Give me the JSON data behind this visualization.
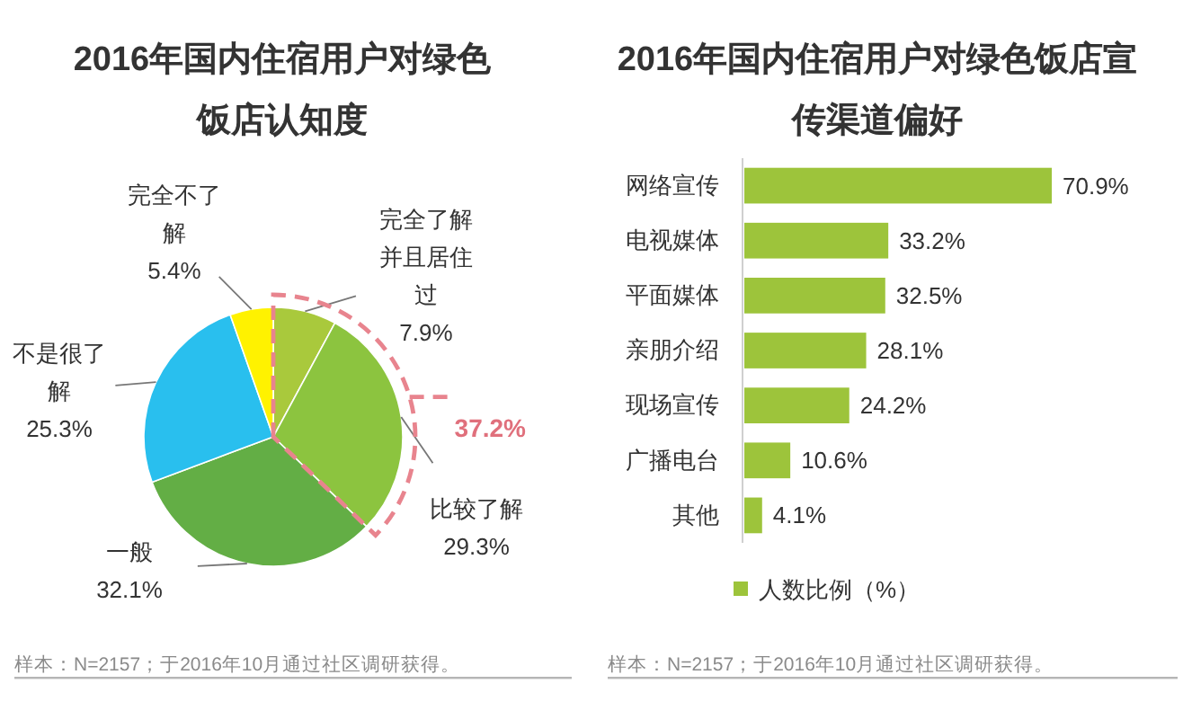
{
  "chart_data": [
    {
      "type": "pie",
      "title": "2016年国内住宿用户对绿色饭店认知度",
      "categories": [
        "完全了解并且居住过",
        "比较了解",
        "一般",
        "不是很了解",
        "完全不了解"
      ],
      "values": [
        7.9,
        29.3,
        32.1,
        25.3,
        5.4
      ],
      "colors": [
        "#a9c93c",
        "#8cc43f",
        "#63ae45",
        "#29bfee",
        "#fff200"
      ],
      "value_labels": [
        "7.9%",
        "29.3%",
        "32.1%",
        "25.3%",
        "5.4%"
      ],
      "annotations": [
        "37.2%",
        "样本：N=2157；于2016年10月通过社区调研获得。"
      ]
    },
    {
      "type": "bar",
      "orientation": "horizontal",
      "title": "2016年国内住宿用户对绿色饭店宣传渠道偏好",
      "categories": [
        "网络宣传",
        "电视媒体",
        "平面媒体",
        "亲朋介绍",
        "现场宣传",
        "广播电台",
        "其他"
      ],
      "series": [
        {
          "name": "人数比例（%）",
          "color": "#9dc43b",
          "values": [
            70.9,
            33.2,
            32.5,
            28.1,
            24.2,
            10.6,
            4.1
          ],
          "value_labels": [
            "70.9%",
            "33.2%",
            "32.5%",
            "28.1%",
            "24.2%",
            "10.6%",
            "4.1%"
          ]
        }
      ],
      "legend": "bottom",
      "annotations": [
        "样本：N=2157；于2016年10月通过社区调研获得。"
      ]
    }
  ]
}
